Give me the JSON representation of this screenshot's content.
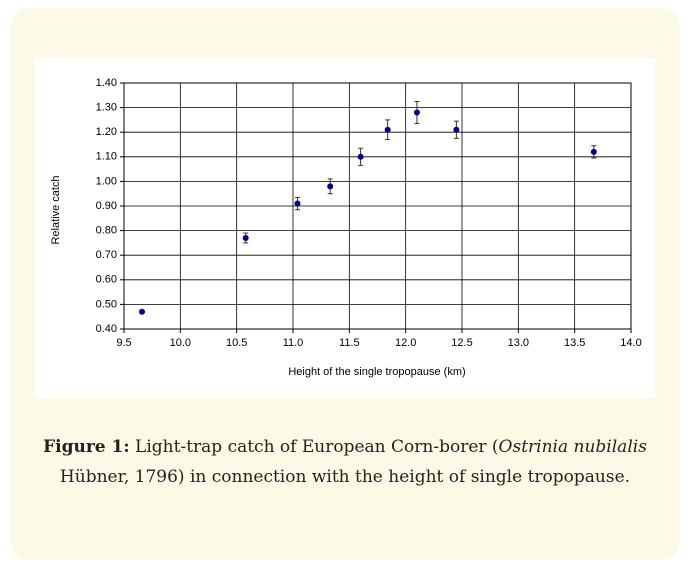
{
  "chart_data": {
    "type": "scatter",
    "xlabel": "Height of the single tropopause (km)",
    "ylabel": "Relative catch",
    "x": [
      9.66,
      10.58,
      11.04,
      11.33,
      11.6,
      11.84,
      12.1,
      12.45,
      13.67
    ],
    "values": [
      0.47,
      0.77,
      0.91,
      0.98,
      1.1,
      1.21,
      1.28,
      1.21,
      1.12
    ],
    "errors": [
      0.005,
      0.02,
      0.025,
      0.03,
      0.035,
      0.04,
      0.045,
      0.035,
      0.025
    ],
    "color": "#000080",
    "grid": true,
    "xlim": [
      9.5,
      14.0
    ],
    "xticks": [
      9.5,
      {
        "value": 10,
        "label": "10.0"
      },
      10.5,
      {
        "value": 11,
        "label": "11.0"
      },
      11.5,
      {
        "value": 12,
        "label": "12.0"
      },
      12.5,
      {
        "value": 13,
        "label": "13.0"
      },
      13.5,
      {
        "value": 14,
        "label": "14.0"
      }
    ],
    "ylim": [
      0.4,
      1.4
    ],
    "yticks": [
      {
        "value": 0.4,
        "label": "0.40"
      },
      {
        "value": 0.5,
        "label": "0.50"
      },
      {
        "value": 0.6,
        "label": "0.60"
      },
      {
        "value": 0.7,
        "label": "0.70"
      },
      {
        "value": 0.8,
        "label": "0.80"
      },
      {
        "value": 0.9,
        "label": "0.90"
      },
      {
        "value": 1.0,
        "label": "1.00"
      },
      {
        "value": 1.1,
        "label": "1.10"
      },
      {
        "value": 1.2,
        "label": "1.20"
      },
      {
        "value": 1.3,
        "label": "1.30"
      },
      {
        "value": 1.4,
        "label": "1.40"
      }
    ]
  },
  "caption": {
    "label": "Figure 1:",
    "text1": " Light-trap catch of European Corn-borer (",
    "italic1": "Ostrinia nubilalis",
    "text2": " Hübner, 1796) in connection with the height of single tropopause."
  }
}
